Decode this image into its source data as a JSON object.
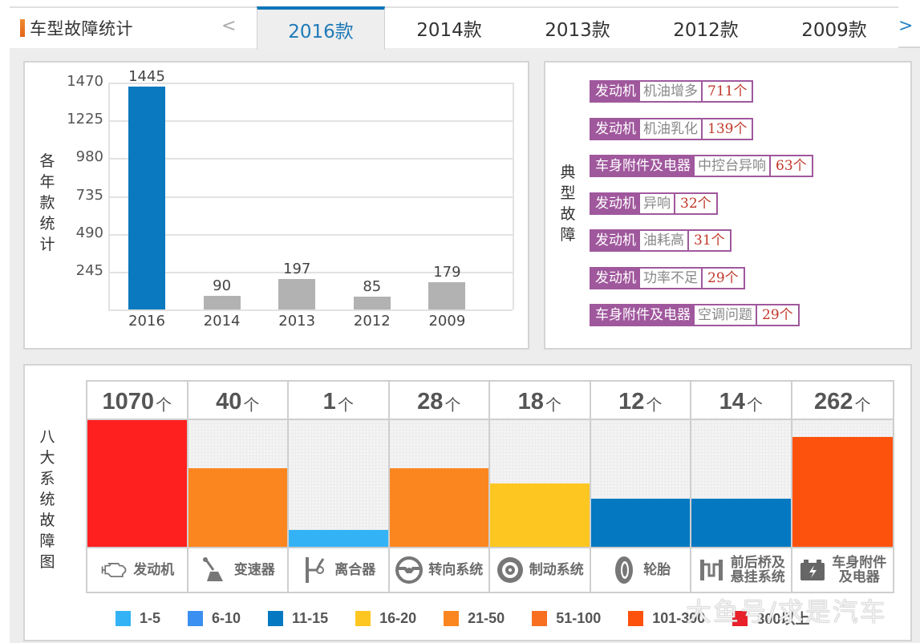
{
  "header": {
    "title": "车型故障统计",
    "prev_icon": "‹",
    "next_icon": "›",
    "tabs": [
      {
        "label": "2016款",
        "active": true
      },
      {
        "label": "2014款",
        "active": false
      },
      {
        "label": "2013款",
        "active": false
      },
      {
        "label": "2012款",
        "active": false
      },
      {
        "label": "2009款",
        "active": false
      }
    ]
  },
  "year_panel": {
    "side_label": "各年款统计"
  },
  "chart_data": {
    "type": "bar",
    "title": "各年款统计",
    "categories": [
      "2016",
      "2014",
      "2013",
      "2012",
      "2009"
    ],
    "values": [
      1445,
      90,
      197,
      85,
      179
    ],
    "highlight_index": 0,
    "colors": {
      "highlight": "#0b79bf",
      "default": "#b2b2b2"
    },
    "yticks": [
      245,
      490,
      735,
      980,
      1225,
      1470
    ],
    "ylim": [
      0,
      1470
    ],
    "xlabel": "",
    "ylabel": "各年款统计",
    "grid": true
  },
  "faults_panel": {
    "side_label": "典型故障",
    "items": [
      {
        "category": "发动机",
        "fault": "机油增多",
        "count": "711个"
      },
      {
        "category": "发动机",
        "fault": "机油乳化",
        "count": "139个"
      },
      {
        "category": "车身附件及电器",
        "fault": "中控台异响",
        "count": "63个"
      },
      {
        "category": "发动机",
        "fault": "异响",
        "count": "32个"
      },
      {
        "category": "发动机",
        "fault": "油耗高",
        "count": "31个"
      },
      {
        "category": "发动机",
        "fault": "功率不足",
        "count": "29个"
      },
      {
        "category": "车身附件及电器",
        "fault": "空调问题",
        "count": "29个"
      }
    ]
  },
  "systems_panel": {
    "side_label": "八大系统故障图",
    "unit": "个",
    "systems": [
      {
        "name": "发动机",
        "count": "1070",
        "fill": 1.0,
        "color": "#fe1f1f",
        "icon": "engine-icon"
      },
      {
        "name": "变速器",
        "count": "40",
        "fill": 0.62,
        "color": "#fb8620",
        "icon": "gear-shifter-icon"
      },
      {
        "name": "离合器",
        "count": "1",
        "fill": 0.13,
        "color": "#33b3f5",
        "icon": "clutch-icon"
      },
      {
        "name": "转向系统",
        "count": "28",
        "fill": 0.62,
        "color": "#fb8620",
        "icon": "steering-wheel-icon"
      },
      {
        "name": "制动系统",
        "count": "18",
        "fill": 0.5,
        "color": "#fdc621",
        "icon": "brake-disc-icon"
      },
      {
        "name": "轮胎",
        "count": "12",
        "fill": 0.38,
        "color": "#0479c1",
        "icon": "tire-icon"
      },
      {
        "name": "前后桥及悬挂系统",
        "name_lines": [
          "前后桥及",
          "悬挂系统"
        ],
        "count": "14",
        "fill": 0.38,
        "color": "#0479c1",
        "icon": "axle-icon"
      },
      {
        "name": "车身附件及电器",
        "name_lines": [
          "车身附件",
          "及电器"
        ],
        "count": "262",
        "fill": 0.87,
        "color": "#fd520e",
        "icon": "battery-icon"
      }
    ],
    "legend": [
      {
        "label": "1-5",
        "color": "#33b3f5"
      },
      {
        "label": "6-10",
        "color": "#3b8ff0"
      },
      {
        "label": "11-15",
        "color": "#0479c1"
      },
      {
        "label": "16-20",
        "color": "#fdc621"
      },
      {
        "label": "21-50",
        "color": "#fb8620"
      },
      {
        "label": "51-100",
        "color": "#f96f22"
      },
      {
        "label": "101-300",
        "color": "#fd520e"
      },
      {
        "label": "300以上",
        "color": "#e8202a"
      }
    ]
  },
  "watermark": "大鱼号/求是汽车"
}
